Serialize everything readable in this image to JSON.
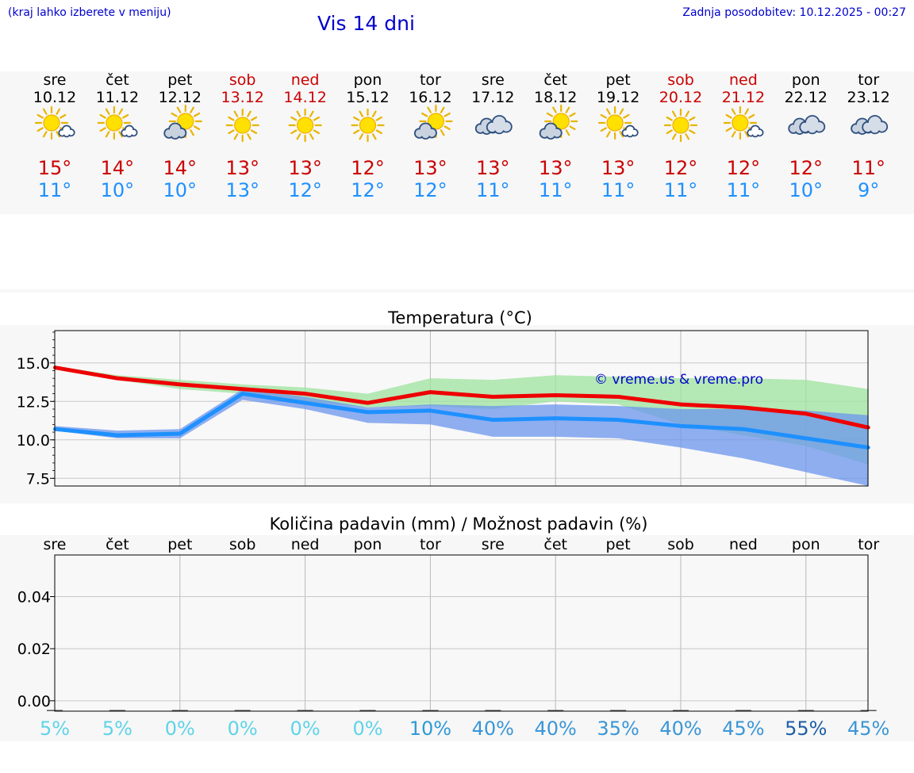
{
  "header": {
    "hint": "(kraj lahko izberete v meniju)",
    "title": "Vis 14 dni",
    "updated": "Zadnja posodobitev: 10.12.2025 - 00:27"
  },
  "days": [
    {
      "name": "sre",
      "date": "10.12",
      "weekend": false,
      "icon": "sun-small-cloud-icon",
      "hi": "15°",
      "lo": "11°"
    },
    {
      "name": "čet",
      "date": "11.12",
      "weekend": false,
      "icon": "sun-small-cloud-icon",
      "hi": "14°",
      "lo": "10°"
    },
    {
      "name": "pet",
      "date": "12.12",
      "weekend": false,
      "icon": "sun-cloud-icon",
      "hi": "14°",
      "lo": "10°"
    },
    {
      "name": "sob",
      "date": "13.12",
      "weekend": true,
      "icon": "sun-icon",
      "hi": "13°",
      "lo": "13°"
    },
    {
      "name": "ned",
      "date": "14.12",
      "weekend": true,
      "icon": "sun-icon",
      "hi": "13°",
      "lo": "12°"
    },
    {
      "name": "pon",
      "date": "15.12",
      "weekend": false,
      "icon": "sun-icon",
      "hi": "12°",
      "lo": "12°"
    },
    {
      "name": "tor",
      "date": "16.12",
      "weekend": false,
      "icon": "sun-cloud-icon",
      "hi": "13°",
      "lo": "12°"
    },
    {
      "name": "sre",
      "date": "17.12",
      "weekend": false,
      "icon": "cloud-icon",
      "hi": "13°",
      "lo": "11°"
    },
    {
      "name": "čet",
      "date": "18.12",
      "weekend": false,
      "icon": "sun-cloud-icon",
      "hi": "13°",
      "lo": "11°"
    },
    {
      "name": "pet",
      "date": "19.12",
      "weekend": false,
      "icon": "sun-small-cloud-icon",
      "hi": "13°",
      "lo": "11°"
    },
    {
      "name": "sob",
      "date": "20.12",
      "weekend": true,
      "icon": "sun-icon",
      "hi": "12°",
      "lo": "11°"
    },
    {
      "name": "ned",
      "date": "21.12",
      "weekend": true,
      "icon": "sun-small-cloud-icon",
      "hi": "12°",
      "lo": "11°"
    },
    {
      "name": "pon",
      "date": "22.12",
      "weekend": false,
      "icon": "cloud-icon",
      "hi": "12°",
      "lo": "10°"
    },
    {
      "name": "tor",
      "date": "23.12",
      "weekend": false,
      "icon": "cloud-icon",
      "hi": "11°",
      "lo": "9°"
    }
  ],
  "colors": {
    "weekend": "#cc0000",
    "hi": "#cc0000",
    "lo": "#1e90ff",
    "link": "#0000cc"
  },
  "chart_data": [
    {
      "type": "line",
      "title": "Temperatura (°C)",
      "x": [
        0,
        1,
        2,
        3,
        4,
        5,
        6,
        7,
        8,
        9,
        10,
        11,
        12,
        13
      ],
      "ylim": [
        7.0,
        17.1
      ],
      "yticks": [
        "15.0",
        "12.5",
        "10.0",
        "7.5"
      ],
      "ytick_values": [
        15.0,
        12.5,
        10.0,
        7.5
      ],
      "watermark": "© vreme.us & vreme.pro",
      "series": [
        {
          "name": "max",
          "color": "#ee0000",
          "values": [
            14.7,
            14.0,
            13.6,
            13.3,
            13.0,
            12.4,
            13.1,
            12.8,
            12.9,
            12.8,
            12.3,
            12.1,
            11.7,
            10.8
          ]
        },
        {
          "name": "min",
          "color": "#1e90ff",
          "values": [
            10.7,
            10.3,
            10.4,
            13.0,
            12.4,
            11.8,
            11.9,
            11.3,
            11.4,
            11.3,
            10.9,
            10.7,
            10.1,
            9.5
          ]
        }
      ],
      "bands": [
        {
          "name": "max-range",
          "color": "#9ee39e",
          "low": [
            14.6,
            13.9,
            13.3,
            13.0,
            12.5,
            12.1,
            12.2,
            12.0,
            12.5,
            12.3,
            11.0,
            10.3,
            9.6,
            8.4
          ],
          "high": [
            14.8,
            14.2,
            13.9,
            13.6,
            13.4,
            13.0,
            14.0,
            13.9,
            14.2,
            14.1,
            14.0,
            14.0,
            13.9,
            13.3
          ]
        },
        {
          "name": "min-range",
          "color": "#6b96ee",
          "low": [
            10.6,
            10.1,
            10.1,
            12.6,
            12.0,
            11.1,
            11.0,
            10.2,
            10.2,
            10.1,
            9.5,
            8.8,
            7.9,
            7.0
          ],
          "high": [
            10.9,
            10.6,
            10.7,
            13.3,
            12.8,
            12.1,
            12.3,
            12.2,
            12.3,
            12.2,
            12.0,
            12.0,
            11.9,
            11.6
          ]
        }
      ]
    },
    {
      "type": "bar",
      "title": "Količina padavin (mm) / Možnost padavin (%)",
      "categories": [
        "sre",
        "čet",
        "pet",
        "sob",
        "ned",
        "pon",
        "tor",
        "sre",
        "čet",
        "pet",
        "sob",
        "ned",
        "pon",
        "tor"
      ],
      "values": [
        0,
        0,
        0,
        0,
        0,
        0,
        0,
        0,
        0,
        0,
        0,
        0,
        0,
        0
      ],
      "ylim": [
        -0.004,
        0.056
      ],
      "yticks": [
        "0.04",
        "0.02",
        "0.00"
      ],
      "ytick_values": [
        0.04,
        0.02,
        0.0
      ],
      "probability": [
        {
          "label": "5%",
          "value": 5
        },
        {
          "label": "5%",
          "value": 5
        },
        {
          "label": "0%",
          "value": 0
        },
        {
          "label": "0%",
          "value": 0
        },
        {
          "label": "0%",
          "value": 0
        },
        {
          "label": "0%",
          "value": 0
        },
        {
          "label": "10%",
          "value": 10
        },
        {
          "label": "40%",
          "value": 40
        },
        {
          "label": "40%",
          "value": 40
        },
        {
          "label": "35%",
          "value": 35
        },
        {
          "label": "40%",
          "value": 40
        },
        {
          "label": "45%",
          "value": 45
        },
        {
          "label": "55%",
          "value": 55
        },
        {
          "label": "45%",
          "value": 45
        }
      ]
    }
  ]
}
